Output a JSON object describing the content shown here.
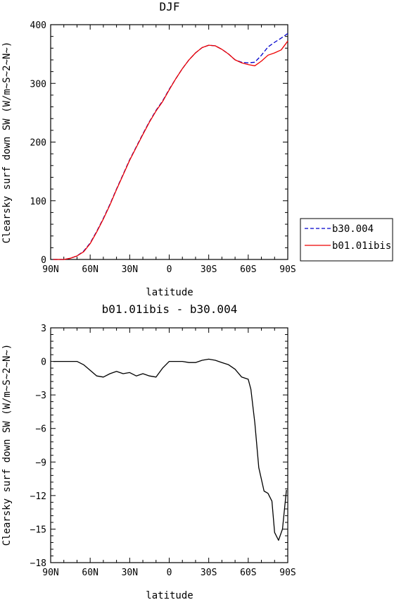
{
  "chart_data": [
    {
      "type": "line",
      "title": "DJF",
      "xlabel": "latitude",
      "ylabel": "Clearsky surf down SW (W/m~S~2~N~)",
      "xlim": [
        -90,
        90
      ],
      "ylim": [
        0,
        400
      ],
      "xticks": [
        -90,
        -60,
        -30,
        0,
        30,
        60,
        90
      ],
      "xtick_labels": [
        "90N",
        "60N",
        "30N",
        "0",
        "30S",
        "60S",
        "90S"
      ],
      "yticks": [
        0,
        100,
        200,
        300,
        400
      ],
      "ytick_labels": [
        "0",
        "100",
        "200",
        "300",
        "400"
      ],
      "legend_position": "right-outside",
      "series": [
        {
          "name": "b30.004",
          "color": "#0000cc",
          "dash": "dashed",
          "x": [
            -88,
            -80,
            -75,
            -70,
            -65,
            -60,
            -55,
            -50,
            -45,
            -40,
            -35,
            -30,
            -25,
            -20,
            -15,
            -10,
            -5,
            0,
            5,
            10,
            15,
            20,
            25,
            30,
            35,
            40,
            45,
            50,
            55,
            60,
            65,
            70,
            75,
            80,
            85,
            90
          ],
          "y": [
            0,
            0,
            2,
            6,
            14,
            28,
            48,
            70,
            94,
            120,
            145,
            170,
            192,
            214,
            235,
            254,
            270,
            290,
            308,
            325,
            340,
            352,
            361,
            365,
            364,
            358,
            350,
            340,
            336,
            335,
            336,
            348,
            362,
            370,
            377,
            385
          ]
        },
        {
          "name": "b01.01ibis",
          "color": "#ee0000",
          "dash": "solid",
          "x": [
            -88,
            -80,
            -75,
            -70,
            -65,
            -60,
            -55,
            -50,
            -45,
            -40,
            -35,
            -30,
            -25,
            -20,
            -15,
            -10,
            -5,
            0,
            5,
            10,
            15,
            20,
            25,
            30,
            35,
            40,
            45,
            50,
            55,
            60,
            65,
            70,
            75,
            80,
            85,
            90
          ],
          "y": [
            0,
            0,
            2,
            6,
            13,
            27,
            47,
            69,
            93,
            119,
            144,
            169,
            191,
            213,
            234,
            253,
            269,
            289,
            308,
            325,
            340,
            352,
            361,
            365,
            364,
            358,
            350,
            340,
            335,
            332,
            330,
            338,
            348,
            352,
            357,
            372
          ]
        }
      ]
    },
    {
      "type": "line",
      "title": "b01.01ibis - b30.004",
      "xlabel": "latitude",
      "ylabel": "Clearsky surf down SW (W/m~S~2~N~)",
      "xlim": [
        -90,
        90
      ],
      "ylim": [
        -18,
        3
      ],
      "xticks": [
        -90,
        -60,
        -30,
        0,
        30,
        60,
        90
      ],
      "xtick_labels": [
        "90N",
        "60N",
        "30N",
        "0",
        "30S",
        "60S",
        "90S"
      ],
      "yticks": [
        3,
        0,
        -3,
        -6,
        -9,
        -12,
        -15,
        -18
      ],
      "ytick_labels": [
        "3",
        "0",
        "−3",
        "−6",
        "−9",
        "−12",
        "−15",
        "−18"
      ],
      "series": [
        {
          "color": "#000000",
          "dash": "solid",
          "x": [
            -88,
            -70,
            -65,
            -60,
            -55,
            -50,
            -45,
            -40,
            -35,
            -30,
            -25,
            -20,
            -15,
            -10,
            -5,
            0,
            5,
            10,
            15,
            20,
            25,
            30,
            35,
            40,
            45,
            50,
            55,
            60,
            62,
            65,
            68,
            72,
            75,
            78,
            80,
            83,
            86,
            89
          ],
          "y": [
            0,
            0,
            -0.3,
            -0.8,
            -1.3,
            -1.4,
            -1.1,
            -0.9,
            -1.1,
            -1.0,
            -1.3,
            -1.1,
            -1.3,
            -1.4,
            -0.6,
            0.0,
            0.0,
            0.0,
            -0.1,
            -0.1,
            0.1,
            0.2,
            0.1,
            -0.1,
            -0.3,
            -0.7,
            -1.4,
            -1.6,
            -2.5,
            -5.5,
            -9.5,
            -11.6,
            -11.8,
            -12.5,
            -15.3,
            -16.0,
            -15.0,
            -11.5
          ]
        }
      ]
    }
  ]
}
